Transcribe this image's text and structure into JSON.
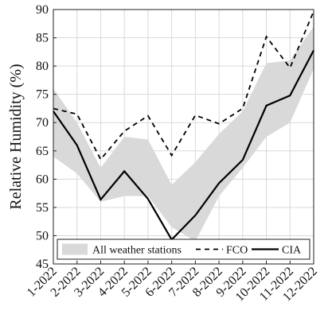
{
  "chart_data": {
    "type": "line",
    "ylabel": "Relative Humidity (%)",
    "xlabel": "",
    "ylim": [
      45,
      90
    ],
    "yticks": [
      45,
      50,
      55,
      60,
      65,
      70,
      75,
      80,
      85,
      90
    ],
    "categories": [
      "1-2022",
      "2-2022",
      "3-2022",
      "4-2022",
      "5-2022",
      "6-2022",
      "7-2022",
      "8-2022",
      "9-2022",
      "10-2022",
      "11-2022",
      "12-2022"
    ],
    "grid": true,
    "legend_position": "bottom",
    "series": [
      {
        "name": "All weather stations",
        "kind": "band",
        "color": "#d9d9d9",
        "upper": [
          76,
          70,
          62,
          67.5,
          67,
          59,
          63,
          68,
          72,
          80.5,
          81,
          87
        ],
        "lower": [
          64,
          61,
          56,
          57,
          57,
          51.5,
          49,
          57,
          62,
          67.5,
          70,
          79.5
        ]
      },
      {
        "name": "FCO",
        "kind": "line",
        "dash": "dashed",
        "color": "#000000",
        "values": [
          72.5,
          71.5,
          63.5,
          68.5,
          71.2,
          64.2,
          71.3,
          69.8,
          72.5,
          85.2,
          79.7,
          89.7
        ]
      },
      {
        "name": "CIA",
        "kind": "line",
        "dash": "solid",
        "color": "#000000",
        "values": [
          72,
          66,
          56.4,
          61.4,
          56.5,
          49.3,
          53.6,
          59.3,
          63.4,
          73,
          74.8,
          82.8
        ]
      }
    ]
  }
}
